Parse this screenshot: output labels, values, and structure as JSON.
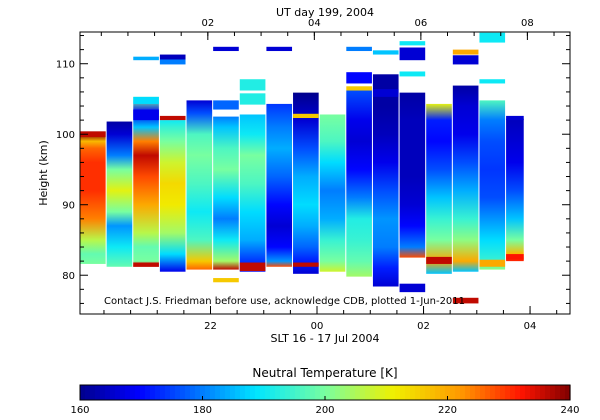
{
  "chart_data": {
    "type": "heatmap",
    "title": "UT day 199, 2004",
    "xlabel": "SLT 16 - 17 Jul 2004",
    "ylabel": "Height (km)",
    "xlim_hours": [
      19.55,
      28.75
    ],
    "ylim": [
      74.5,
      114.5
    ],
    "top_axis_ticks": [
      {
        "hour": 21.95,
        "label": "02"
      },
      {
        "hour": 23.95,
        "label": "04"
      },
      {
        "hour": 25.95,
        "label": "06"
      },
      {
        "hour": 27.95,
        "label": "08"
      }
    ],
    "bottom_axis_ticks": [
      {
        "hour": 22,
        "label": "22"
      },
      {
        "hour": 24,
        "label": "00"
      },
      {
        "hour": 26,
        "label": "02"
      },
      {
        "hour": 28,
        "label": "04"
      }
    ],
    "y_ticks": [
      80,
      90,
      100,
      110
    ],
    "note": "Contact J.S. Friedman before use, acknowledge CDB, plotted 1-Jun-2011",
    "colorbar": {
      "label": "Neutral Temperature [K]",
      "min": 160,
      "max": 240,
      "ticks": [
        160,
        180,
        200,
        220,
        240
      ]
    },
    "profiles": [
      {
        "t0": 19.55,
        "t1": 20.05,
        "z0": 81.6,
        "z1": 100.4,
        "stops": [
          [
            81.6,
            200
          ],
          [
            83,
            198
          ],
          [
            85,
            206
          ],
          [
            88,
            224
          ],
          [
            92,
            230
          ],
          [
            96,
            230
          ],
          [
            98,
            226
          ],
          [
            99,
            218
          ],
          [
            100,
            240
          ]
        ]
      },
      {
        "t0": 20.05,
        "t1": 20.55,
        "z0": 81.2,
        "z1": 101.8,
        "stops": [
          [
            81.2,
            198
          ],
          [
            84,
            190
          ],
          [
            87,
            182
          ],
          [
            89,
            200
          ],
          [
            92,
            210
          ],
          [
            95,
            200
          ],
          [
            97,
            180
          ],
          [
            100,
            166
          ],
          [
            101.8,
            162
          ]
        ]
      },
      {
        "t0": 20.55,
        "t1": 21.05,
        "z0": 81.2,
        "z1": 105.3,
        "stops": [
          [
            81.2,
            234
          ],
          [
            82,
            200
          ],
          [
            84,
            198
          ],
          [
            86,
            206
          ],
          [
            90,
            220
          ],
          [
            94,
            228
          ],
          [
            97,
            236
          ],
          [
            99,
            224
          ],
          [
            101,
            186
          ],
          [
            103,
            168
          ],
          [
            105,
            200
          ]
        ]
      },
      {
        "t0": 21.05,
        "t1": 21.55,
        "z0": 80.5,
        "z1": 102.0,
        "stops": [
          [
            80.5,
            168
          ],
          [
            83,
            188
          ],
          [
            86,
            204
          ],
          [
            90,
            212
          ],
          [
            93,
            214
          ],
          [
            96,
            208
          ],
          [
            99,
            200
          ],
          [
            101,
            194
          ],
          [
            102,
            190
          ]
        ]
      },
      {
        "t0": 21.55,
        "t1": 22.05,
        "z0": 80.8,
        "z1": 104.8,
        "stops": [
          [
            80.8,
            226
          ],
          [
            82,
            216
          ],
          [
            85,
            196
          ],
          [
            89,
            190
          ],
          [
            93,
            196
          ],
          [
            97,
            200
          ],
          [
            100,
            196
          ],
          [
            103,
            176
          ],
          [
            104.8,
            166
          ]
        ]
      },
      {
        "t0": 22.05,
        "t1": 22.55,
        "z0": 80.8,
        "z1": 102.5,
        "stops": [
          [
            80.8,
            236
          ],
          [
            82,
            204
          ],
          [
            85,
            190
          ],
          [
            88,
            180
          ],
          [
            91,
            188
          ],
          [
            95,
            200
          ],
          [
            98,
            196
          ],
          [
            101,
            186
          ],
          [
            102.5,
            180
          ]
        ]
      },
      {
        "t0": 22.55,
        "t1": 23.05,
        "z0": 80.5,
        "z1": 102.8,
        "stops": [
          [
            80.5,
            168
          ],
          [
            82,
            174
          ],
          [
            85,
            184
          ],
          [
            89,
            188
          ],
          [
            93,
            196
          ],
          [
            97,
            200
          ],
          [
            100,
            190
          ],
          [
            102.8,
            186
          ]
        ]
      },
      {
        "t0": 23.05,
        "t1": 23.55,
        "z0": 81.2,
        "z1": 104.3,
        "stops": [
          [
            81.2,
            228
          ],
          [
            82,
            182
          ],
          [
            84,
            170
          ],
          [
            87,
            166
          ],
          [
            90,
            170
          ],
          [
            94,
            178
          ],
          [
            98,
            184
          ],
          [
            101,
            180
          ],
          [
            104.3,
            174
          ]
        ]
      },
      {
        "t0": 23.55,
        "t1": 24.05,
        "z0": 80.2,
        "z1": 105.9,
        "stops": [
          [
            80.2,
            166
          ],
          [
            82,
            172
          ],
          [
            84,
            178
          ],
          [
            87,
            184
          ],
          [
            90,
            188
          ],
          [
            94,
            184
          ],
          [
            98,
            176
          ],
          [
            102,
            166
          ],
          [
            105.9,
            160
          ]
        ]
      },
      {
        "t0": 24.05,
        "t1": 24.55,
        "z0": 80.5,
        "z1": 102.8,
        "stops": [
          [
            80.5,
            208
          ],
          [
            82,
            200
          ],
          [
            85,
            194
          ],
          [
            88,
            184
          ],
          [
            92,
            180
          ],
          [
            96,
            188
          ],
          [
            99,
            196
          ],
          [
            102.8,
            200
          ]
        ]
      },
      {
        "t0": 24.55,
        "t1": 25.05,
        "z0": 79.8,
        "z1": 106.2,
        "stops": [
          [
            79.8,
            204
          ],
          [
            82,
            198
          ],
          [
            85,
            194
          ],
          [
            88,
            192
          ],
          [
            91,
            180
          ],
          [
            95,
            170
          ],
          [
            99,
            166
          ],
          [
            102,
            168
          ],
          [
            106.2,
            176
          ]
        ]
      },
      {
        "t0": 25.05,
        "t1": 25.55,
        "z0": 78.4,
        "z1": 108.5,
        "stops": [
          [
            78.4,
            166
          ],
          [
            81,
            172
          ],
          [
            84,
            180
          ],
          [
            88,
            182
          ],
          [
            92,
            176
          ],
          [
            96,
            168
          ],
          [
            100,
            164
          ],
          [
            104,
            162
          ],
          [
            108.5,
            162
          ]
        ]
      },
      {
        "t0": 25.55,
        "t1": 26.05,
        "z0": 82.5,
        "z1": 105.9,
        "stops": [
          [
            82.5,
            228
          ],
          [
            84,
            180
          ],
          [
            87,
            170
          ],
          [
            90,
            166
          ],
          [
            94,
            164
          ],
          [
            98,
            164
          ],
          [
            102,
            164
          ],
          [
            105.9,
            162
          ]
        ]
      },
      {
        "t0": 26.05,
        "t1": 26.55,
        "z0": 80.2,
        "z1": 104.3,
        "stops": [
          [
            80.2,
            186
          ],
          [
            82,
            220
          ],
          [
            85,
            200
          ],
          [
            88,
            194
          ],
          [
            91,
            186
          ],
          [
            95,
            176
          ],
          [
            99,
            170
          ],
          [
            102,
            172
          ],
          [
            104.3,
            210
          ]
        ]
      },
      {
        "t0": 26.55,
        "t1": 27.05,
        "z0": 80.5,
        "z1": 106.9,
        "stops": [
          [
            80.5,
            186
          ],
          [
            82,
            220
          ],
          [
            85,
            202
          ],
          [
            88,
            194
          ],
          [
            92,
            184
          ],
          [
            96,
            176
          ],
          [
            100,
            168
          ],
          [
            104,
            166
          ],
          [
            106.9,
            162
          ]
        ]
      },
      {
        "t0": 27.05,
        "t1": 27.55,
        "z0": 80.8,
        "z1": 104.8,
        "stops": [
          [
            80.8,
            202
          ],
          [
            82,
            194
          ],
          [
            85,
            188
          ],
          [
            88,
            182
          ],
          [
            91,
            176
          ],
          [
            95,
            174
          ],
          [
            99,
            176
          ],
          [
            102,
            180
          ],
          [
            104.8,
            196
          ]
        ]
      },
      {
        "t0": 27.55,
        "t1": 27.9,
        "z0": 82.0,
        "z1": 102.2,
        "stops": [
          [
            82.0,
            232
          ],
          [
            83,
            218
          ],
          [
            85,
            200
          ],
          [
            88,
            186
          ],
          [
            92,
            176
          ],
          [
            96,
            168
          ],
          [
            99,
            166
          ],
          [
            102.2,
            164
          ]
        ]
      }
    ],
    "segments": [
      {
        "t0": 19.55,
        "t1": 20.05,
        "z0": 99.6,
        "z1": 100.4,
        "v": 236
      },
      {
        "t0": 20.55,
        "t1": 21.05,
        "z0": 81.2,
        "z1": 81.8,
        "v": 236
      },
      {
        "t0": 20.55,
        "t1": 21.05,
        "z0": 102.0,
        "z1": 103.5,
        "v": 168
      },
      {
        "t0": 20.55,
        "t1": 21.05,
        "z0": 104.3,
        "z1": 105.3,
        "v": 188
      },
      {
        "t0": 21.05,
        "t1": 21.55,
        "z0": 102.0,
        "z1": 102.6,
        "v": 236
      },
      {
        "t0": 21.05,
        "t1": 21.55,
        "z0": 109.9,
        "z1": 110.6,
        "v": 180
      },
      {
        "t0": 21.05,
        "t1": 21.55,
        "z0": 110.6,
        "z1": 111.3,
        "v": 164
      },
      {
        "t0": 20.55,
        "t1": 21.05,
        "z0": 110.5,
        "z1": 111.0,
        "v": 184
      },
      {
        "t0": 22.05,
        "t1": 22.55,
        "z0": 79.0,
        "z1": 79.6,
        "v": 216
      },
      {
        "t0": 22.05,
        "t1": 22.55,
        "z0": 103.5,
        "z1": 104.8,
        "v": 178
      },
      {
        "t0": 22.05,
        "t1": 22.55,
        "z0": 111.8,
        "z1": 112.4,
        "v": 166
      },
      {
        "t0": 22.55,
        "t1": 23.05,
        "z0": 80.6,
        "z1": 81.8,
        "v": 236
      },
      {
        "t0": 22.55,
        "t1": 23.05,
        "z0": 104.2,
        "z1": 105.8,
        "v": 192
      },
      {
        "t0": 22.55,
        "t1": 23.05,
        "z0": 106.2,
        "z1": 107.8,
        "v": 192
      },
      {
        "t0": 23.05,
        "t1": 23.55,
        "z0": 111.8,
        "z1": 112.4,
        "v": 166
      },
      {
        "t0": 23.55,
        "t1": 24.05,
        "z0": 102.3,
        "z1": 102.9,
        "v": 216
      },
      {
        "t0": 23.55,
        "t1": 24.05,
        "z0": 81.2,
        "z1": 81.8,
        "v": 236
      },
      {
        "t0": 24.55,
        "t1": 25.05,
        "z0": 106.2,
        "z1": 106.8,
        "v": 216
      },
      {
        "t0": 24.55,
        "t1": 25.05,
        "z0": 107.2,
        "z1": 108.8,
        "v": 170
      },
      {
        "t0": 24.55,
        "t1": 25.05,
        "z0": 111.8,
        "z1": 112.4,
        "v": 180
      },
      {
        "t0": 25.05,
        "t1": 25.55,
        "z0": 105.3,
        "z1": 106.4,
        "v": 166
      },
      {
        "t0": 25.05,
        "t1": 25.55,
        "z0": 111.3,
        "z1": 111.9,
        "v": 186
      },
      {
        "t0": 25.55,
        "t1": 26.05,
        "z0": 110.5,
        "z1": 112.3,
        "v": 166
      },
      {
        "t0": 25.55,
        "t1": 26.05,
        "z0": 112.6,
        "z1": 113.2,
        "v": 190
      },
      {
        "t0": 25.55,
        "t1": 26.05,
        "z0": 108.2,
        "z1": 108.9,
        "v": 190
      },
      {
        "t0": 25.55,
        "t1": 26.05,
        "z0": 77.6,
        "z1": 78.8,
        "v": 166
      },
      {
        "t0": 26.05,
        "t1": 26.55,
        "z0": 81.6,
        "z1": 82.6,
        "v": 236
      },
      {
        "t0": 26.55,
        "t1": 27.05,
        "z0": 76.0,
        "z1": 76.8,
        "v": 236
      },
      {
        "t0": 26.55,
        "t1": 27.05,
        "z0": 109.9,
        "z1": 111.2,
        "v": 166
      },
      {
        "t0": 26.55,
        "t1": 27.05,
        "z0": 111.3,
        "z1": 112.0,
        "v": 220
      },
      {
        "t0": 27.05,
        "t1": 27.55,
        "z0": 113.0,
        "z1": 114.4,
        "v": 190
      },
      {
        "t0": 27.05,
        "t1": 27.55,
        "z0": 107.2,
        "z1": 107.8,
        "v": 190
      },
      {
        "t0": 27.05,
        "t1": 27.55,
        "z0": 81.2,
        "z1": 82.2,
        "v": 220
      },
      {
        "t0": 27.55,
        "t1": 27.9,
        "z0": 102.0,
        "z1": 102.6,
        "v": 166
      },
      {
        "t0": 27.55,
        "t1": 27.9,
        "z0": 82.2,
        "z1": 83.0,
        "v": 232
      }
    ]
  }
}
